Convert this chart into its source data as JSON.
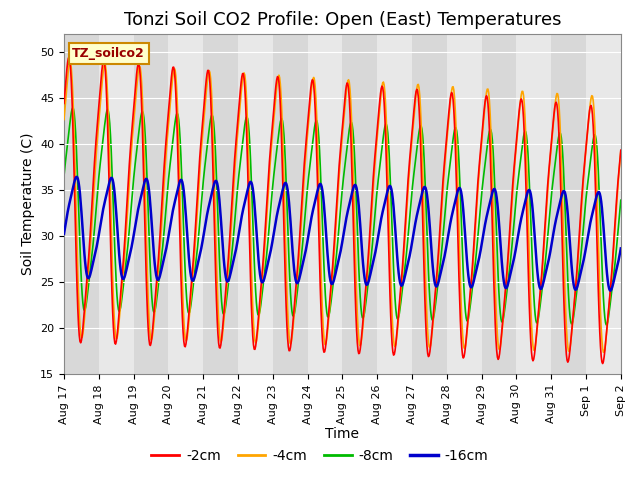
{
  "title": "Tonzi Soil CO2 Profile: Open (East) Temperatures",
  "xlabel": "Time",
  "ylabel": "Soil Temperature (C)",
  "ylim": [
    15,
    52
  ],
  "yticks": [
    15,
    20,
    25,
    30,
    35,
    40,
    45,
    50
  ],
  "legend_label": "TZ_soilco2",
  "series_labels": [
    "-2cm",
    "-4cm",
    "-8cm",
    "-16cm"
  ],
  "series_colors": [
    "#ff0000",
    "#ffa500",
    "#00bb00",
    "#0000cc"
  ],
  "series_linewidths": [
    1.2,
    1.2,
    1.2,
    1.8
  ],
  "plot_bg_color": "#e8e8e8",
  "title_fontsize": 13,
  "axis_label_fontsize": 10,
  "tick_fontsize": 8,
  "legend_fontsize": 10,
  "n_cycles": 15,
  "period_days": 1.0
}
